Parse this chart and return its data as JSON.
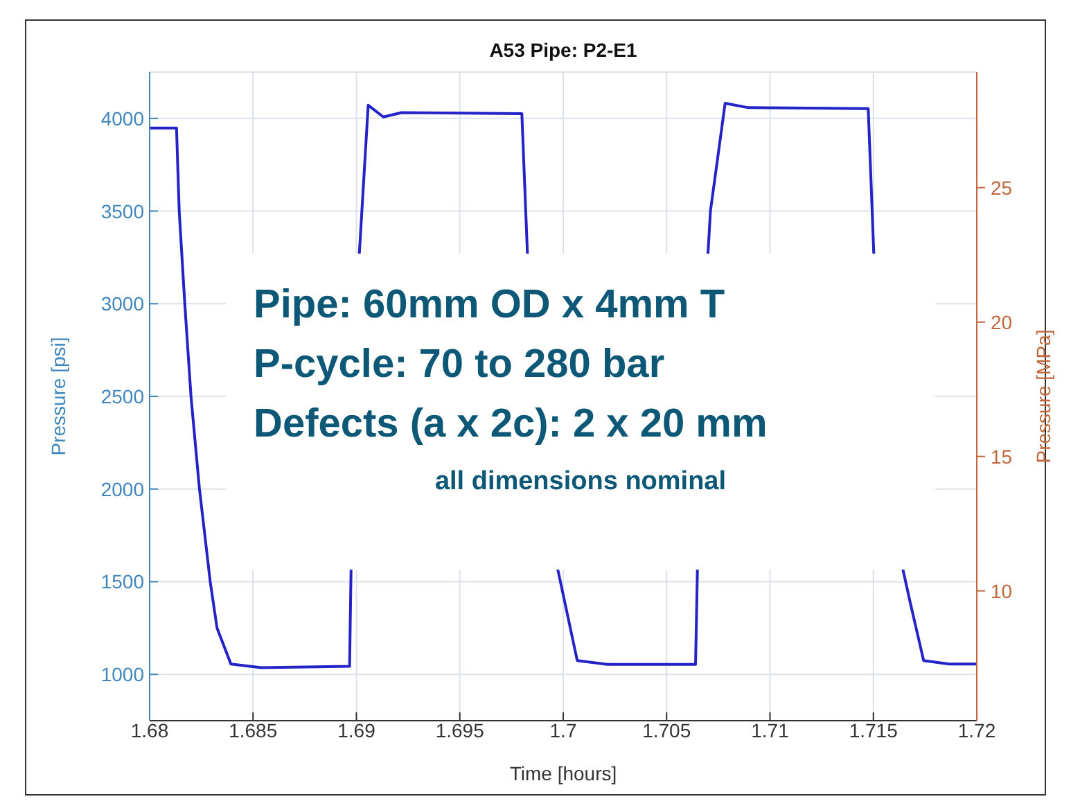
{
  "chart_data": {
    "type": "line",
    "title": "A53 Pipe: P2-E1",
    "xlabel": "Time [hours]",
    "ylabel": "Pressure [psi]",
    "y2label": "Pressure [MPa]",
    "x": [
      1.68,
      1.6813,
      1.68143,
      1.6817,
      1.682,
      1.68241,
      1.68293,
      1.68326,
      1.68393,
      1.68541,
      1.68967,
      1.68974,
      1.68994,
      1.69014,
      1.69057,
      1.6913,
      1.69219,
      1.698,
      1.69827,
      1.699,
      1.69974,
      1.70068,
      1.70213,
      1.7064,
      1.70649,
      1.70675,
      1.707,
      1.70712,
      1.70783,
      1.70895,
      1.71475,
      1.71502,
      1.7157,
      1.71643,
      1.71676,
      1.71743,
      1.71866,
      1.72
    ],
    "series": [
      {
        "color": "#2323c8",
        "values": [
          3948,
          3948,
          3500,
          3000,
          2500,
          2000,
          1500,
          1250,
          1056,
          1036,
          1044,
          1565,
          null,
          3269,
          4071,
          4008,
          4031,
          4026,
          3269,
          null,
          1565,
          1074,
          1054,
          1054,
          1565,
          null,
          3269,
          3500,
          4082,
          4058,
          4053,
          3269,
          null,
          1565,
          1398,
          1074,
          1056,
          1056
        ]
      }
    ],
    "xlim": [
      1.68,
      1.72
    ],
    "xticks": [
      1.68,
      1.685,
      1.69,
      1.695,
      1.7,
      1.705,
      1.71,
      1.715,
      1.72
    ],
    "ylim": [
      750,
      4250
    ],
    "yticks": [
      1000,
      1500,
      2000,
      2500,
      3000,
      3500,
      4000
    ],
    "y2lim": [
      5.17,
      29.3
    ],
    "y2ticks": [
      10,
      15,
      20,
      25
    ],
    "grid": true,
    "marker": "none",
    "line_style": "solid",
    "annotations": [
      "Pipe: 60mm OD x 4mm T",
      "P-cycle: 70 to 280 bar",
      "Defects (a x 2c): 2 x 20 mm",
      "all dimensions nominal"
    ]
  }
}
